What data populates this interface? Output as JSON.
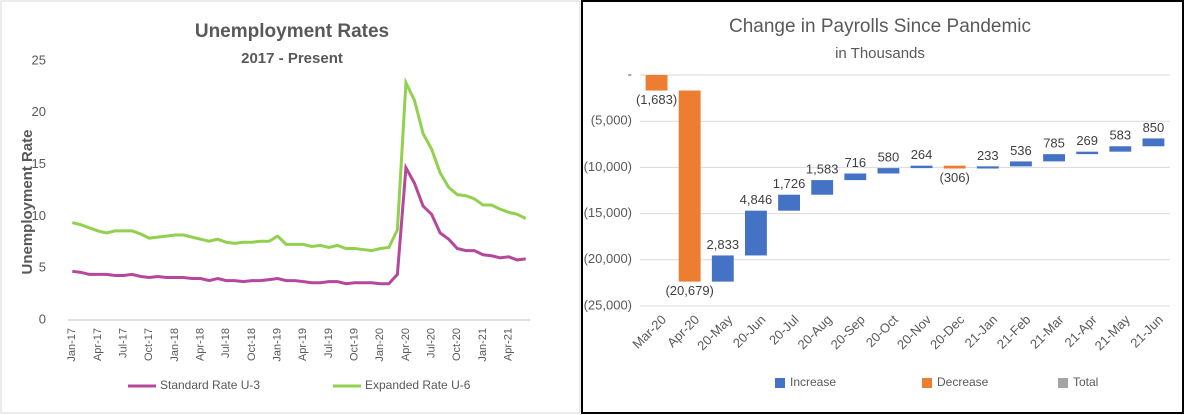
{
  "chart_data": [
    {
      "type": "line",
      "title": "Unemployment Rates",
      "subtitle": "2017 - Present",
      "y_label": "Unemployment Rate",
      "categories": [
        "Jan-17",
        null,
        null,
        "Apr-17",
        null,
        null,
        "Jul-17",
        null,
        null,
        "Oct-17",
        null,
        null,
        "Jan-18",
        null,
        null,
        "Apr-18",
        null,
        null,
        "Jul-18",
        null,
        null,
        "Oct-18",
        null,
        null,
        "Jan-19",
        null,
        null,
        "Apr-19",
        null,
        null,
        "Jul-19",
        null,
        null,
        "Oct-19",
        null,
        null,
        "Jan-20",
        null,
        null,
        "Apr-20",
        null,
        null,
        "Jul-20",
        null,
        null,
        "Oct-20",
        null,
        null,
        "Jan-21",
        null,
        null,
        "Apr-21",
        null,
        null
      ],
      "series": [
        {
          "name": "Standard Rate U-3",
          "color": "#b5489c",
          "values": [
            4.7,
            4.6,
            4.4,
            4.4,
            4.4,
            4.3,
            4.3,
            4.4,
            4.2,
            4.1,
            4.2,
            4.1,
            4.1,
            4.1,
            4.0,
            4.0,
            3.8,
            4.0,
            3.8,
            3.8,
            3.7,
            3.8,
            3.8,
            3.9,
            4.0,
            3.8,
            3.8,
            3.7,
            3.6,
            3.6,
            3.7,
            3.7,
            3.5,
            3.6,
            3.6,
            3.6,
            3.5,
            3.5,
            4.4,
            14.7,
            13.2,
            11.0,
            10.2,
            8.4,
            7.8,
            6.9,
            6.7,
            6.7,
            6.3,
            6.2,
            6.0,
            6.1,
            5.8,
            5.9
          ]
        },
        {
          "name": "Expanded Rate U-6",
          "color": "#92d050",
          "values": [
            9.4,
            9.2,
            8.9,
            8.6,
            8.4,
            8.6,
            8.6,
            8.6,
            8.3,
            7.9,
            8.0,
            8.1,
            8.2,
            8.2,
            8.0,
            7.8,
            7.6,
            7.8,
            7.5,
            7.4,
            7.5,
            7.5,
            7.6,
            7.6,
            8.1,
            7.3,
            7.3,
            7.3,
            7.1,
            7.2,
            7.0,
            7.2,
            6.9,
            6.9,
            6.8,
            6.7,
            6.9,
            7.0,
            8.7,
            22.9,
            21.2,
            18.0,
            16.5,
            14.2,
            12.8,
            12.1,
            12.0,
            11.7,
            11.1,
            11.1,
            10.7,
            10.4,
            10.2,
            9.8
          ]
        }
      ],
      "ylim": [
        0,
        25
      ],
      "yticks": [
        0,
        5,
        10,
        15,
        20,
        25
      ],
      "grid": false,
      "legend": "bottom"
    },
    {
      "type": "waterfall",
      "title": "Change in Payrolls Since Pandemic",
      "subtitle": "in Thousands",
      "categories": [
        "Mar-20",
        "Apr-20",
        "20-May",
        "20-Jun",
        "20-Jul",
        "20-Aug",
        "20-Sep",
        "20-Oct",
        "20-Nov",
        "20-Dec",
        "21-Jan",
        "21-Feb",
        "21-Mar",
        "21-Apr",
        "21-May",
        "21-Jun"
      ],
      "values": [
        -1683,
        -20679,
        2833,
        4846,
        1726,
        1583,
        716,
        580,
        264,
        -306,
        233,
        536,
        785,
        269,
        583,
        850
      ],
      "value_labels": [
        "(1,683)",
        "(20,679)",
        "2,833",
        "4,846",
        "1,726",
        "1,583",
        "716",
        "580",
        "264",
        "(306)",
        "233",
        "536",
        "785",
        "269",
        "583",
        "850"
      ],
      "legend_items": [
        {
          "name": "Increase",
          "color": "#4472c4"
        },
        {
          "name": "Decrease",
          "color": "#ed7d31"
        },
        {
          "name": "Total",
          "color": "#a5a5a5"
        }
      ],
      "ylim": [
        -25000,
        0
      ],
      "yticks": [
        {
          "value": 0,
          "label": "-"
        },
        {
          "value": -5000,
          "label": "(5,000)"
        },
        {
          "value": -10000,
          "label": "(10,000)"
        },
        {
          "value": -15000,
          "label": "(15,000)"
        },
        {
          "value": -20000,
          "label": "(20,000)"
        },
        {
          "value": -25000,
          "label": "(25,000)"
        }
      ],
      "grid": true,
      "legend": "bottom"
    }
  ]
}
